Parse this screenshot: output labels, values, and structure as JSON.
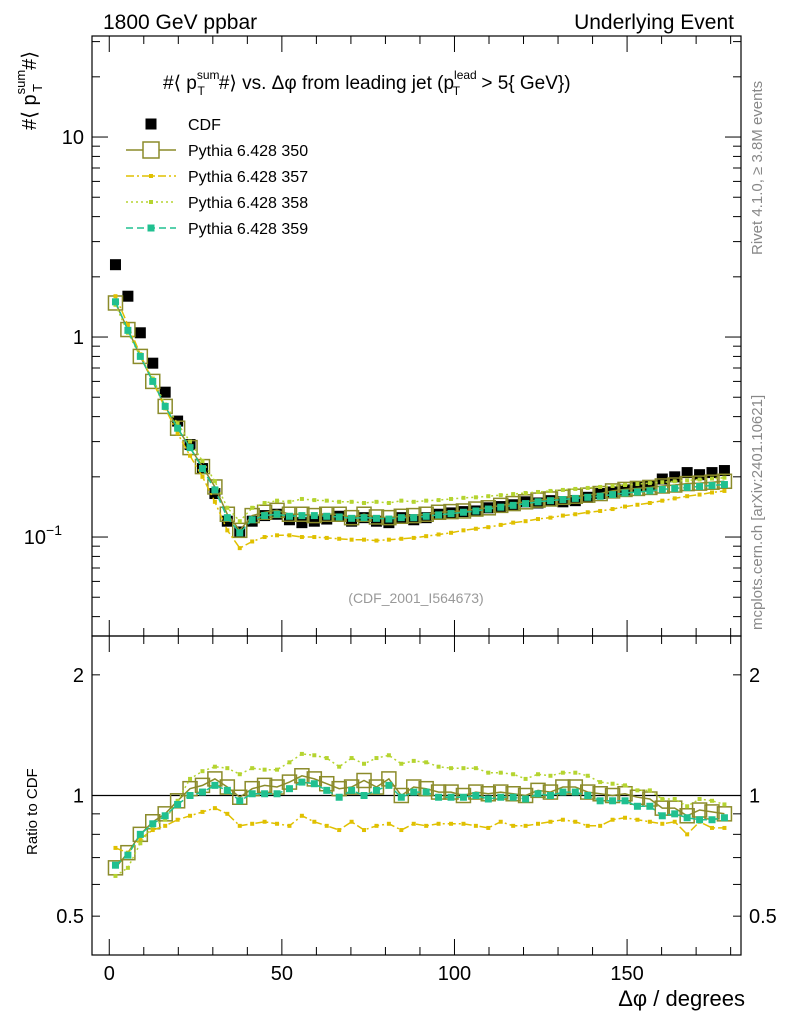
{
  "header": {
    "left": "1800 GeV ppbar",
    "right": "Underlying Event"
  },
  "side_labels": {
    "rivet": "Rivet 4.1.0, ≥ 3.8M events",
    "mcplots": "mcplots.cern.ch [arXiv:2401.10621]"
  },
  "chart_data": [
    {
      "type": "scatter",
      "title": "#⟨ p_T^sum # ⟩ vs. Δφ from leading jet  (p_T^lead > 5{ GeV})",
      "title_parts": {
        "a": "#⟨ p",
        "sup1": "sum",
        "sub1": "T",
        "b": "#⟩ vs. Δφ from leading jet  (p",
        "sup2": "lead",
        "sub2": "T",
        "c": " > 5{ GeV})"
      },
      "ylabel_parts": {
        "a": "#⟨ p",
        "sup": "sum",
        "sub": "T",
        "b": "#⟩"
      },
      "xlabel": "Δφ / degrees",
      "yscale": "log",
      "ylim": [
        0.032,
        32
      ],
      "xlim": [
        -5,
        183
      ],
      "yticks": [
        {
          "v": 10,
          "label": "10"
        },
        {
          "v": 1,
          "label": "1"
        },
        {
          "v": 0.1,
          "label": "10",
          "sup": "−1"
        }
      ],
      "xticks": [
        {
          "v": 0,
          "label": "0"
        },
        {
          "v": 50,
          "label": "50"
        },
        {
          "v": 100,
          "label": "100"
        },
        {
          "v": 150,
          "label": "150"
        }
      ],
      "analysis_label": "(CDF_2001_I564673)",
      "legend_position": "top-left",
      "x": [
        1.8,
        5.4,
        9,
        12.6,
        16.2,
        19.8,
        23.4,
        27,
        30.6,
        34.2,
        37.8,
        41.4,
        45,
        48.6,
        52.2,
        55.8,
        59.4,
        63,
        66.6,
        70.2,
        73.8,
        77.4,
        81,
        84.6,
        88.2,
        91.8,
        95.4,
        99,
        102.6,
        106.2,
        109.8,
        113.4,
        117,
        120.6,
        124.2,
        127.8,
        131.4,
        135,
        138.6,
        142.2,
        145.8,
        149.4,
        153,
        156.6,
        160.2,
        163.8,
        167.4,
        171,
        174.6,
        178.2
      ],
      "series": [
        {
          "name": "CDF",
          "color": "#000000",
          "marker": "filled-square",
          "line": "none",
          "values": [
            2.3,
            1.6,
            1.05,
            0.74,
            0.53,
            0.38,
            0.29,
            0.22,
            0.165,
            0.12,
            0.106,
            0.12,
            0.128,
            0.13,
            0.122,
            0.118,
            0.12,
            0.123,
            0.127,
            0.12,
            0.125,
            0.12,
            0.118,
            0.125,
            0.122,
            0.125,
            0.13,
            0.132,
            0.134,
            0.135,
            0.14,
            0.142,
            0.145,
            0.15,
            0.148,
            0.152,
            0.15,
            0.152,
            0.158,
            0.165,
            0.168,
            0.172,
            0.178,
            0.18,
            0.195,
            0.2,
            0.21,
            0.205,
            0.21,
            0.215
          ]
        },
        {
          "name": "Pythia 6.428 350",
          "color": "#8b8b2a",
          "marker": "open-square",
          "line": "solid",
          "values": [
            1.48,
            1.09,
            0.8,
            0.6,
            0.45,
            0.35,
            0.28,
            0.225,
            0.178,
            0.13,
            0.108,
            0.128,
            0.133,
            0.136,
            0.13,
            0.13,
            0.128,
            0.13,
            0.13,
            0.125,
            0.13,
            0.126,
            0.125,
            0.127,
            0.128,
            0.13,
            0.133,
            0.134,
            0.135,
            0.138,
            0.14,
            0.144,
            0.147,
            0.15,
            0.153,
            0.155,
            0.158,
            0.16,
            0.162,
            0.165,
            0.17,
            0.173,
            0.175,
            0.177,
            0.18,
            0.182,
            0.185,
            0.186,
            0.188,
            0.19
          ]
        },
        {
          "name": "Pythia 6.428 357",
          "color": "#e0c000",
          "marker": "tiny",
          "line": "dashdot",
          "values": [
            1.6,
            1.15,
            0.82,
            0.6,
            0.44,
            0.33,
            0.255,
            0.2,
            0.15,
            0.108,
            0.088,
            0.095,
            0.1,
            0.102,
            0.102,
            0.1,
            0.1,
            0.099,
            0.098,
            0.097,
            0.097,
            0.096,
            0.097,
            0.098,
            0.099,
            0.101,
            0.103,
            0.105,
            0.108,
            0.11,
            0.112,
            0.115,
            0.118,
            0.12,
            0.123,
            0.125,
            0.128,
            0.13,
            0.133,
            0.135,
            0.138,
            0.142,
            0.145,
            0.148,
            0.152,
            0.156,
            0.16,
            0.163,
            0.167,
            0.17
          ]
        },
        {
          "name": "Pythia 6.428 358",
          "color": "#b5d430",
          "marker": "tiny",
          "line": "dotted",
          "values": [
            1.45,
            1.05,
            0.8,
            0.62,
            0.46,
            0.37,
            0.3,
            0.24,
            0.19,
            0.14,
            0.12,
            0.14,
            0.148,
            0.152,
            0.15,
            0.155,
            0.153,
            0.152,
            0.15,
            0.15,
            0.148,
            0.15,
            0.148,
            0.152,
            0.15,
            0.152,
            0.153,
            0.155,
            0.157,
            0.158,
            0.16,
            0.162,
            0.164,
            0.166,
            0.168,
            0.17,
            0.172,
            0.174,
            0.176,
            0.178,
            0.18,
            0.182,
            0.184,
            0.186,
            0.188,
            0.19,
            0.192,
            0.194,
            0.196,
            0.198
          ]
        },
        {
          "name": "Pythia 6.428 359",
          "color": "#20c090",
          "marker": "small-square",
          "line": "dashed",
          "values": [
            1.5,
            1.08,
            0.8,
            0.6,
            0.45,
            0.35,
            0.28,
            0.22,
            0.172,
            0.125,
            0.105,
            0.122,
            0.128,
            0.13,
            0.127,
            0.128,
            0.128,
            0.127,
            0.126,
            0.124,
            0.125,
            0.124,
            0.123,
            0.125,
            0.125,
            0.127,
            0.129,
            0.131,
            0.133,
            0.135,
            0.138,
            0.141,
            0.144,
            0.147,
            0.15,
            0.152,
            0.154,
            0.156,
            0.158,
            0.16,
            0.163,
            0.166,
            0.168,
            0.17,
            0.173,
            0.175,
            0.177,
            0.179,
            0.181,
            0.183
          ]
        }
      ]
    },
    {
      "type": "line",
      "ylabel": "Ratio to CDF",
      "xlabel": "Δφ / degrees",
      "yscale": "log",
      "ylim": [
        0.4,
        2.5
      ],
      "xlim": [
        -5,
        183
      ],
      "yticks": [
        {
          "v": 2,
          "label": "2"
        },
        {
          "v": 1,
          "label": "1"
        },
        {
          "v": 0.5,
          "label": "0.5"
        }
      ],
      "xticks": [
        {
          "v": 0,
          "label": "0"
        },
        {
          "v": 50,
          "label": "50"
        },
        {
          "v": 100,
          "label": "100"
        },
        {
          "v": 150,
          "label": "150"
        }
      ],
      "reference": 1,
      "series": [
        {
          "name": "Pythia 6.428 350",
          "color": "#8b8b2a",
          "marker": "open-square",
          "line": "solid",
          "values": [
            0.66,
            0.72,
            0.8,
            0.86,
            0.9,
            0.97,
            1.04,
            1.06,
            1.1,
            1.05,
            0.99,
            1.04,
            1.06,
            1.05,
            1.08,
            1.12,
            1.1,
            1.07,
            1.04,
            1.05,
            1.09,
            1.05,
            1.1,
            1.0,
            1.05,
            1.04,
            1.02,
            1.02,
            1.0,
            1.02,
            1.01,
            1.02,
            1.01,
            1.0,
            1.03,
            1.02,
            1.05,
            1.05,
            1.02,
            1.01,
            1.0,
            1.01,
            0.99,
            0.98,
            0.93,
            0.93,
            0.89,
            0.92,
            0.91,
            0.9
          ]
        },
        {
          "name": "Pythia 6.428 357",
          "color": "#e0c000",
          "marker": "tiny",
          "line": "dashdot",
          "values": [
            0.74,
            0.72,
            0.78,
            0.82,
            0.84,
            0.87,
            0.89,
            0.91,
            0.93,
            0.9,
            0.84,
            0.85,
            0.86,
            0.85,
            0.84,
            0.89,
            0.86,
            0.84,
            0.82,
            0.86,
            0.82,
            0.84,
            0.85,
            0.82,
            0.85,
            0.84,
            0.85,
            0.85,
            0.85,
            0.84,
            0.83,
            0.86,
            0.84,
            0.84,
            0.85,
            0.86,
            0.87,
            0.86,
            0.84,
            0.84,
            0.87,
            0.88,
            0.87,
            0.86,
            0.85,
            0.86,
            0.8,
            0.86,
            0.83,
            0.83
          ]
        },
        {
          "name": "Pythia 6.428 358",
          "color": "#b5d430",
          "marker": "tiny",
          "line": "dotted",
          "values": [
            0.63,
            0.66,
            0.76,
            0.84,
            0.87,
            0.97,
            1.1,
            1.15,
            1.18,
            1.17,
            1.13,
            1.17,
            1.16,
            1.16,
            1.21,
            1.27,
            1.26,
            1.24,
            1.18,
            1.24,
            1.2,
            1.24,
            1.26,
            1.2,
            1.22,
            1.21,
            1.18,
            1.17,
            1.17,
            1.17,
            1.14,
            1.14,
            1.13,
            1.1,
            1.13,
            1.12,
            1.14,
            1.14,
            1.12,
            1.08,
            1.07,
            1.06,
            1.03,
            1.03,
            0.98,
            0.98,
            0.94,
            0.98,
            0.97,
            0.95
          ]
        },
        {
          "name": "Pythia 6.428 359",
          "color": "#20c090",
          "marker": "small-square",
          "line": "dashed",
          "values": [
            0.67,
            0.71,
            0.8,
            0.85,
            0.89,
            0.95,
            1.0,
            1.02,
            1.06,
            1.03,
            0.97,
            1.01,
            1.01,
            1.01,
            1.04,
            1.08,
            1.07,
            1.03,
            0.99,
            1.03,
            1.0,
            1.03,
            1.06,
            0.99,
            1.02,
            1.02,
            0.99,
            0.99,
            0.99,
            1.0,
            0.98,
            0.99,
            0.99,
            0.98,
            1.01,
            1.0,
            1.02,
            1.02,
            1.0,
            0.97,
            0.97,
            0.97,
            0.94,
            0.94,
            0.89,
            0.9,
            0.88,
            0.87,
            0.87,
            0.88
          ]
        }
      ]
    }
  ]
}
